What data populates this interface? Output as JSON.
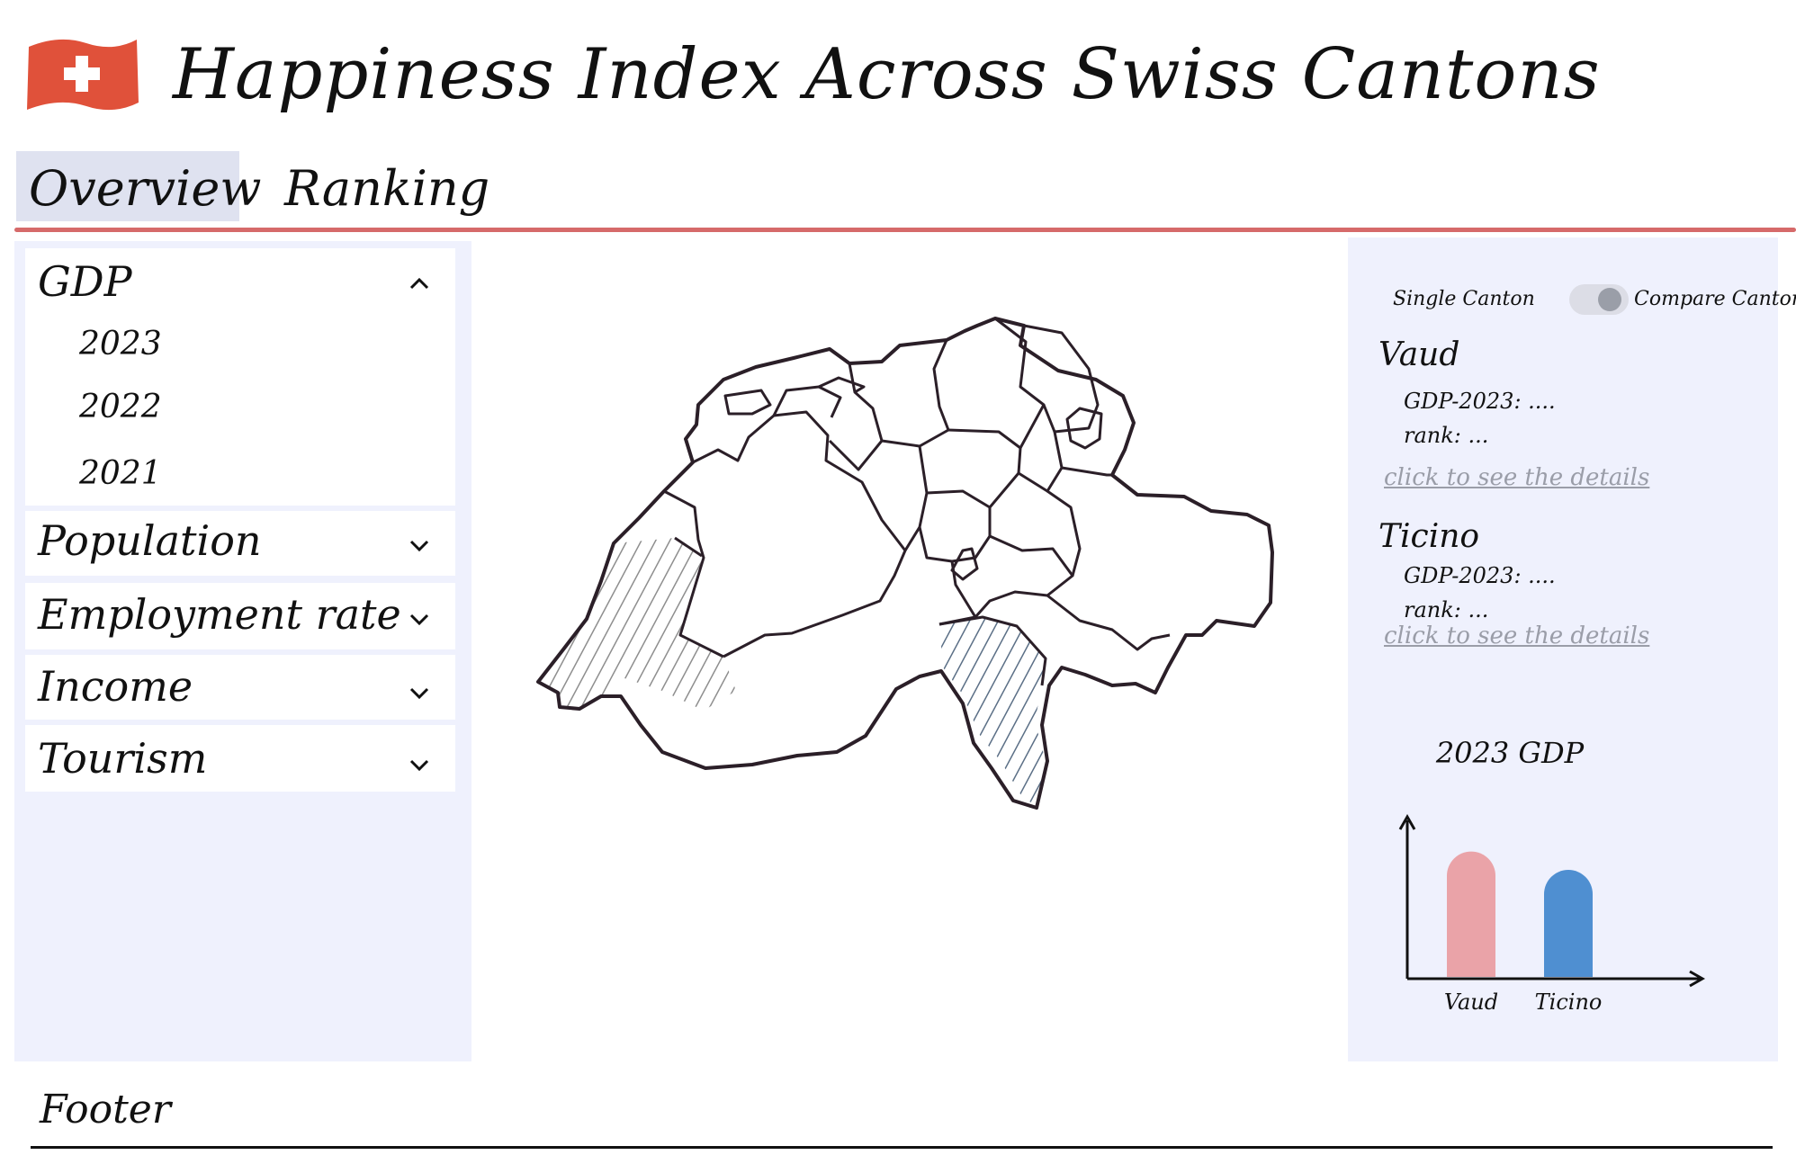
{
  "header": {
    "title": "Happiness Index Across Swiss Cantons",
    "flag_icon": "swiss-flag-icon"
  },
  "tabs": [
    {
      "label": "Overview",
      "active": true
    },
    {
      "label": "Ranking",
      "active": false
    }
  ],
  "sidebar": {
    "sections": [
      {
        "label": "GDP",
        "expanded": true,
        "items": [
          "2023",
          "2022",
          "2021"
        ]
      },
      {
        "label": "Population",
        "expanded": false
      },
      {
        "label": "Employment rate",
        "expanded": false
      },
      {
        "label": "Income",
        "expanded": false
      },
      {
        "label": "Tourism",
        "expanded": false
      }
    ]
  },
  "map": {
    "highlighted": [
      "Vaud",
      "Ticino"
    ],
    "highlight_colors": {
      "Vaud": "#8e8e8e",
      "Ticino": "#5b6f86"
    }
  },
  "panel": {
    "toggle": {
      "left_label": "Single Canton",
      "right_label": "Compare Cantons"
    },
    "cantons": [
      {
        "name": "Vaud",
        "gdp_line": "GDP-2023: ....",
        "rank_line": "rank: ...",
        "link": "click to see the details"
      },
      {
        "name": "Ticino",
        "gdp_line": "GDP-2023: ....",
        "rank_line": "rank: ...",
        "link": "click to see the details"
      }
    ],
    "chart_title": "2023 GDP"
  },
  "chart_data": {
    "type": "bar",
    "title": "2023 GDP",
    "categories": [
      "Vaud",
      "Ticino"
    ],
    "values": [
      0.82,
      0.7
    ],
    "colors": [
      "#eaa3a8",
      "#4f8fd1"
    ]
  },
  "footer": {
    "label": "Footer"
  }
}
